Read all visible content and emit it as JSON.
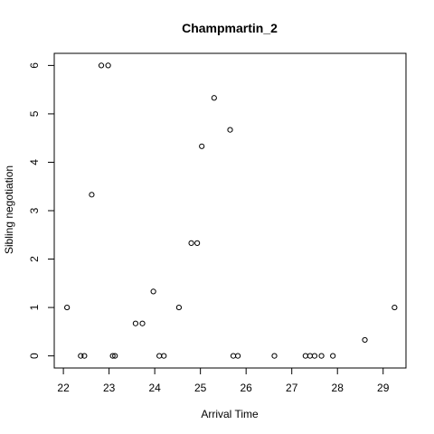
{
  "chart_data": {
    "type": "scatter",
    "title": "Champmartin_2",
    "xlabel": "Arrival Time",
    "ylabel": "Sibling negotiation",
    "xlim": [
      21.8,
      29.5
    ],
    "ylim": [
      -0.25,
      6.25
    ],
    "xticks": [
      22,
      23,
      24,
      25,
      26,
      27,
      28,
      29
    ],
    "yticks": [
      0,
      1,
      2,
      3,
      4,
      5,
      6
    ],
    "grid": false,
    "points": [
      {
        "x": 22.08,
        "y": 1.0
      },
      {
        "x": 22.38,
        "y": 0.0
      },
      {
        "x": 22.46,
        "y": 0.0
      },
      {
        "x": 22.62,
        "y": 3.33
      },
      {
        "x": 22.83,
        "y": 6.0
      },
      {
        "x": 22.98,
        "y": 6.0
      },
      {
        "x": 23.08,
        "y": 0.0
      },
      {
        "x": 23.13,
        "y": 0.0
      },
      {
        "x": 23.58,
        "y": 0.67
      },
      {
        "x": 23.73,
        "y": 0.67
      },
      {
        "x": 23.97,
        "y": 1.33
      },
      {
        "x": 24.1,
        "y": 0.0
      },
      {
        "x": 24.2,
        "y": 0.0
      },
      {
        "x": 24.53,
        "y": 1.0
      },
      {
        "x": 24.8,
        "y": 2.33
      },
      {
        "x": 24.93,
        "y": 2.33
      },
      {
        "x": 25.03,
        "y": 4.33
      },
      {
        "x": 25.3,
        "y": 5.33
      },
      {
        "x": 25.65,
        "y": 4.67
      },
      {
        "x": 25.72,
        "y": 0.0
      },
      {
        "x": 25.82,
        "y": 0.0
      },
      {
        "x": 26.62,
        "y": 0.0
      },
      {
        "x": 27.3,
        "y": 0.0
      },
      {
        "x": 27.4,
        "y": 0.0
      },
      {
        "x": 27.5,
        "y": 0.0
      },
      {
        "x": 27.65,
        "y": 0.0
      },
      {
        "x": 27.9,
        "y": 0.0
      },
      {
        "x": 28.6,
        "y": 0.33
      },
      {
        "x": 29.25,
        "y": 1.0
      }
    ]
  }
}
